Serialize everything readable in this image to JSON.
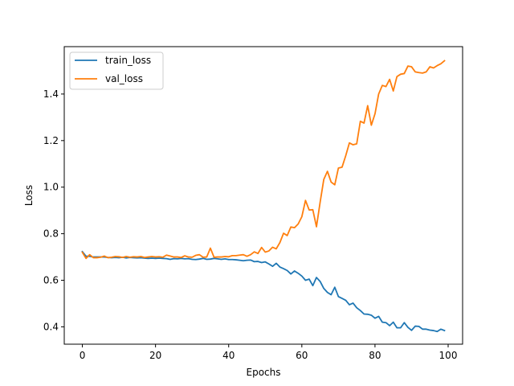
{
  "chart_data": {
    "type": "line",
    "title": "",
    "xlabel": "Epochs",
    "ylabel": "Loss",
    "xlim": [
      -4.95,
      103.95
    ],
    "ylim": [
      0.3255,
      1.6035
    ],
    "xticks": [
      0,
      20,
      40,
      60,
      80,
      100
    ],
    "yticks": [
      0.4,
      0.6,
      0.8,
      1.0,
      1.2,
      1.4
    ],
    "xtick_labels": [
      "0",
      "20",
      "40",
      "60",
      "80",
      "100"
    ],
    "ytick_labels": [
      "0.4",
      "0.6",
      "0.8",
      "1.0",
      "1.2",
      "1.4"
    ],
    "grid": false,
    "legend_position": "upper-left",
    "series": [
      {
        "name": "train_loss",
        "color": "#1f77b4",
        "values": [
          0.723,
          0.703,
          0.703,
          0.7,
          0.7,
          0.7,
          0.7,
          0.698,
          0.697,
          0.698,
          0.697,
          0.699,
          0.696,
          0.698,
          0.697,
          0.696,
          0.697,
          0.695,
          0.694,
          0.695,
          0.694,
          0.695,
          0.694,
          0.693,
          0.69,
          0.693,
          0.692,
          0.694,
          0.692,
          0.693,
          0.69,
          0.689,
          0.691,
          0.694,
          0.69,
          0.691,
          0.694,
          0.692,
          0.69,
          0.692,
          0.689,
          0.689,
          0.688,
          0.686,
          0.684,
          0.686,
          0.687,
          0.68,
          0.681,
          0.676,
          0.679,
          0.67,
          0.66,
          0.673,
          0.657,
          0.65,
          0.642,
          0.627,
          0.64,
          0.63,
          0.618,
          0.6,
          0.605,
          0.577,
          0.612,
          0.595,
          0.565,
          0.548,
          0.538,
          0.57,
          0.53,
          0.522,
          0.514,
          0.495,
          0.502,
          0.482,
          0.47,
          0.455,
          0.454,
          0.45,
          0.437,
          0.445,
          0.42,
          0.418,
          0.405,
          0.42,
          0.396,
          0.396,
          0.418,
          0.398,
          0.385,
          0.403,
          0.402,
          0.39,
          0.39,
          0.386,
          0.384,
          0.38,
          0.39,
          0.384
        ]
      },
      {
        "name": "val_loss",
        "color": "#ff7f0e",
        "values": [
          0.72,
          0.694,
          0.71,
          0.697,
          0.697,
          0.699,
          0.704,
          0.697,
          0.699,
          0.702,
          0.701,
          0.698,
          0.702,
          0.699,
          0.701,
          0.7,
          0.702,
          0.698,
          0.7,
          0.702,
          0.7,
          0.701,
          0.699,
          0.708,
          0.704,
          0.7,
          0.7,
          0.698,
          0.705,
          0.7,
          0.699,
          0.707,
          0.71,
          0.699,
          0.7,
          0.738,
          0.699,
          0.7,
          0.7,
          0.702,
          0.701,
          0.706,
          0.706,
          0.708,
          0.71,
          0.703,
          0.71,
          0.722,
          0.715,
          0.741,
          0.721,
          0.726,
          0.742,
          0.735,
          0.762,
          0.802,
          0.792,
          0.829,
          0.826,
          0.842,
          0.873,
          0.943,
          0.902,
          0.903,
          0.83,
          0.935,
          1.033,
          1.068,
          1.022,
          1.01,
          1.082,
          1.086,
          1.135,
          1.19,
          1.182,
          1.186,
          1.283,
          1.275,
          1.35,
          1.266,
          1.315,
          1.4,
          1.437,
          1.432,
          1.463,
          1.413,
          1.475,
          1.485,
          1.488,
          1.52,
          1.517,
          1.495,
          1.492,
          1.49,
          1.495,
          1.517,
          1.512,
          1.522,
          1.53,
          1.543
        ]
      }
    ]
  }
}
